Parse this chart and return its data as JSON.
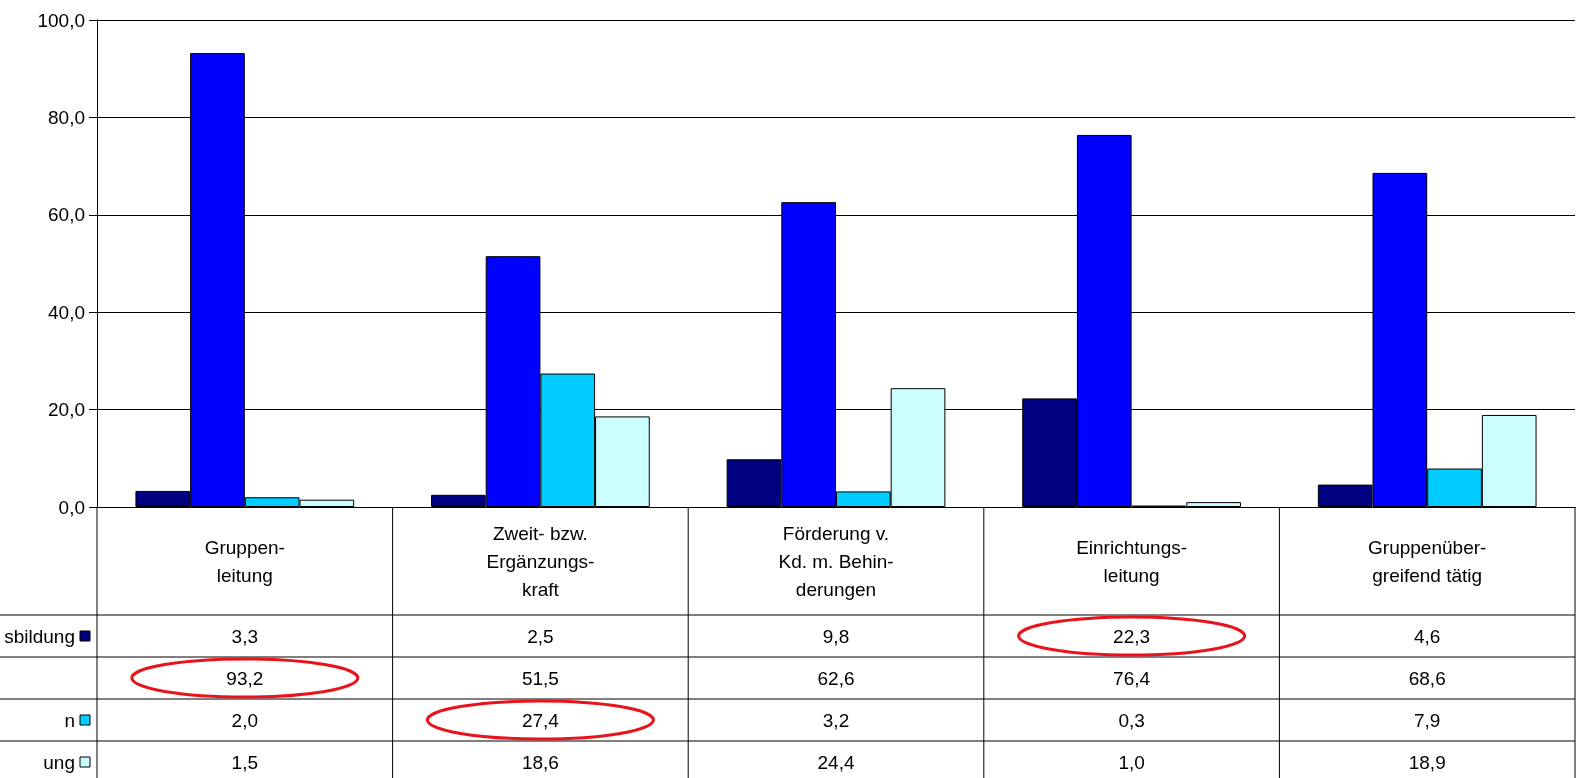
{
  "chart_data": {
    "type": "bar",
    "categories": [
      "Gruppen-\nleitung",
      "Zweit- bzw.\nErgänzungs-\nkraft",
      "Förderung v.\nKd. m. Behin-\nderungen",
      "Einrichtungs-\nleitung",
      "Gruppenüber-\ngreifend tätig"
    ],
    "series": [
      {
        "name": "sbildung",
        "color": "#000080",
        "values": [
          3.3,
          2.5,
          9.8,
          22.3,
          4.6
        ],
        "value_labels": [
          "3,3",
          "2,5",
          "9,8",
          "22,3",
          "4,6"
        ]
      },
      {
        "color": "#0000ff",
        "values": [
          93.2,
          51.5,
          62.6,
          76.4,
          68.6
        ],
        "value_labels": [
          "93,2",
          "51,5",
          "62,6",
          "76,4",
          "68,6"
        ]
      },
      {
        "name": "n",
        "color": "#00ccff",
        "values": [
          2.0,
          27.4,
          3.2,
          0.3,
          7.9
        ],
        "value_labels": [
          "2,0",
          "27,4",
          "3,2",
          "0,3",
          "7,9"
        ]
      },
      {
        "name": "ung",
        "color": "#ccffff",
        "values": [
          1.5,
          18.6,
          24.4,
          1.0,
          18.9
        ],
        "value_labels": [
          "1,5",
          "18,6",
          "24,4",
          "1,0",
          "18,9"
        ]
      }
    ],
    "ylim": [
      0,
      100
    ],
    "yticks": [
      {
        "value": 0,
        "label": "0,0"
      },
      {
        "value": 20,
        "label": "20,0"
      },
      {
        "value": 40,
        "label": "40,0"
      },
      {
        "value": 60,
        "label": "60,0"
      },
      {
        "value": 80,
        "label": "80,0"
      },
      {
        "value": 100,
        "label": "100,0"
      }
    ],
    "grid": "y",
    "legend": "bottom left"
  }
}
